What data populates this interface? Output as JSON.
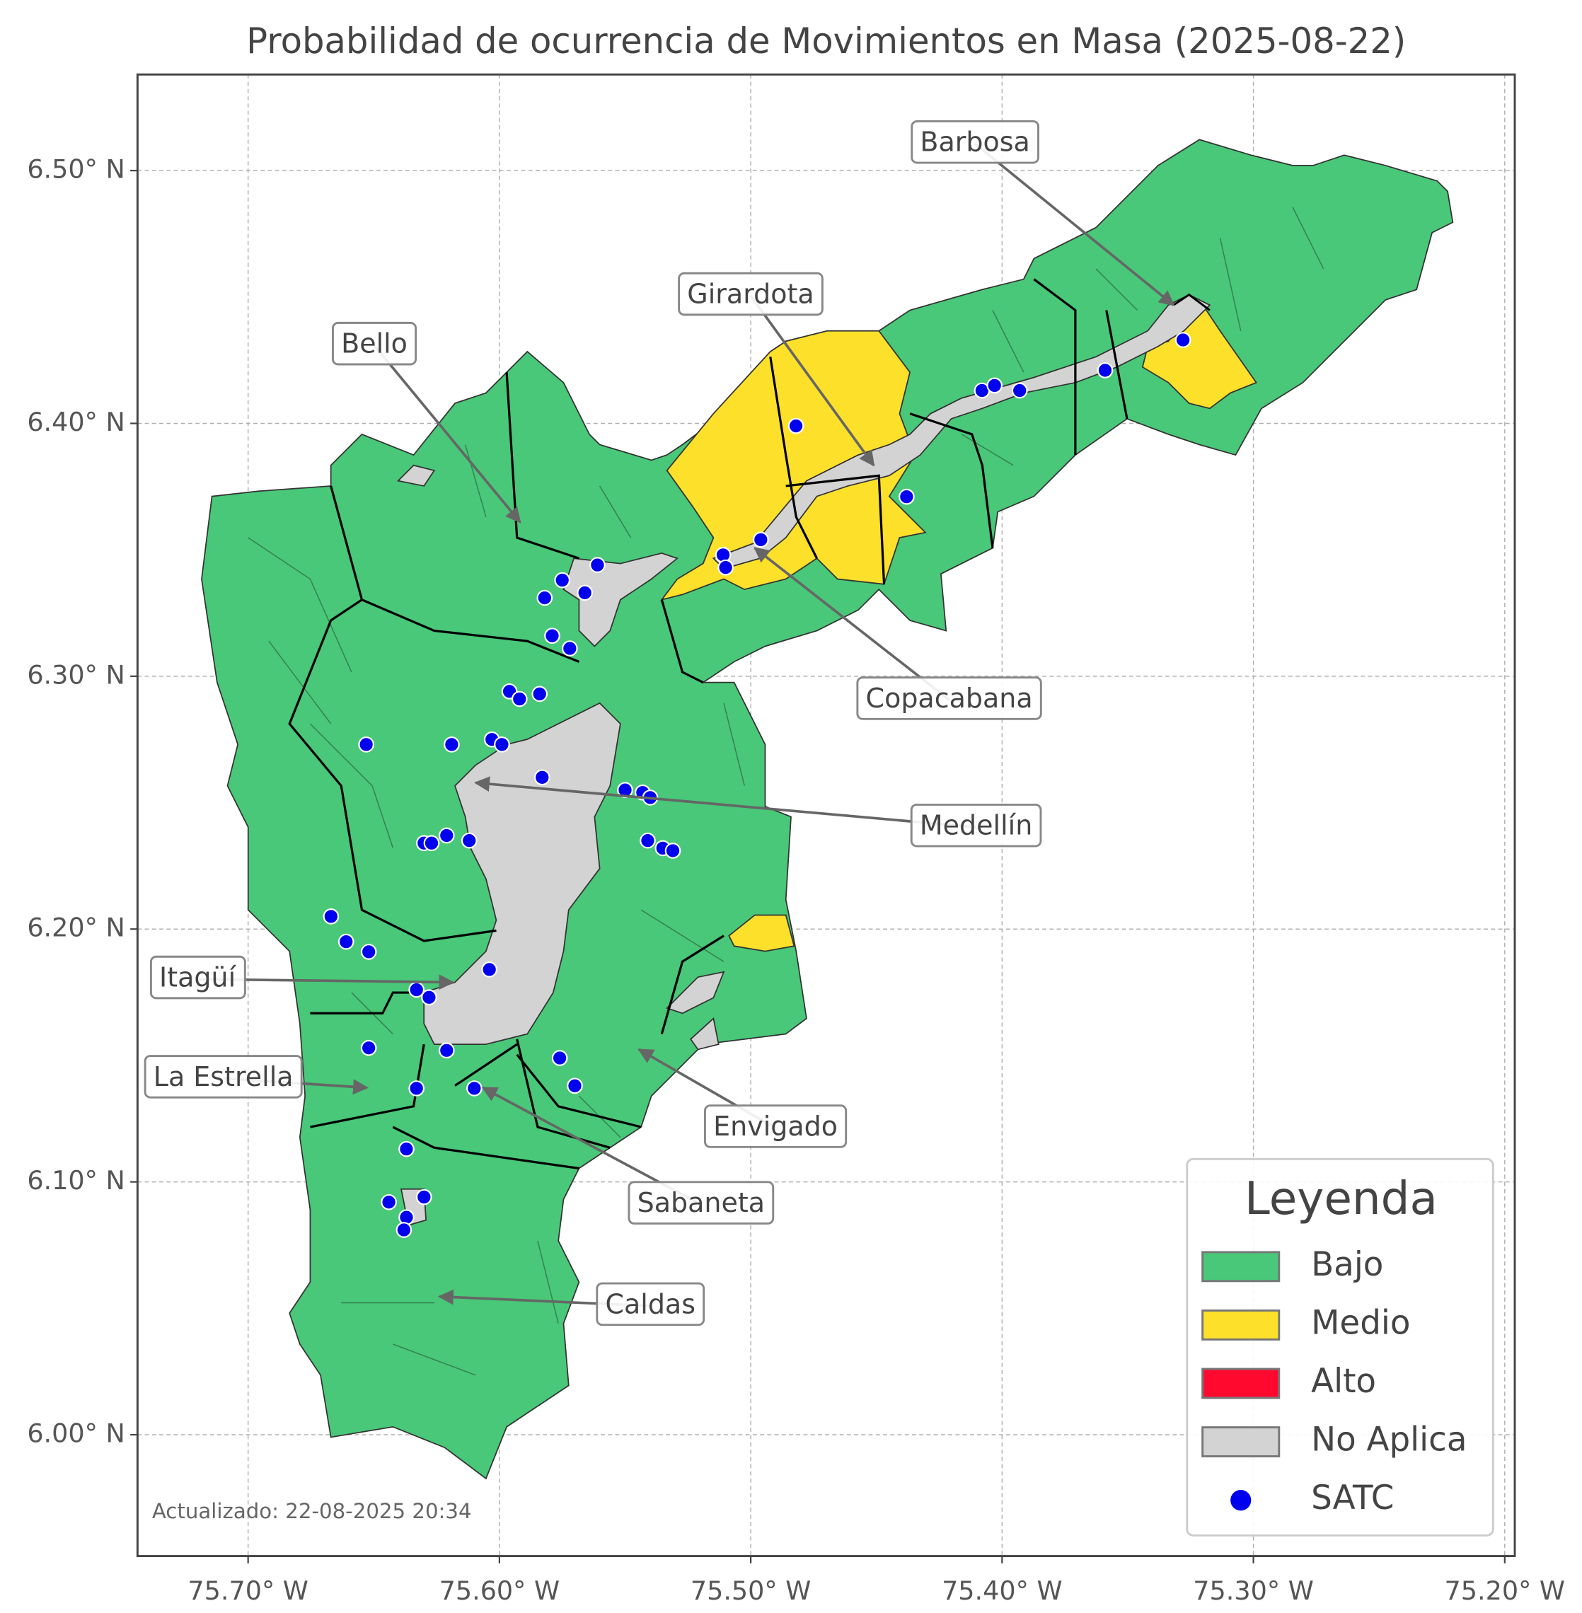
{
  "title": "Probabilidad de ocurrencia de Movimientos en Masa (2025-08-22)",
  "axes": {
    "xlim": [
      -75.744,
      -75.196
    ],
    "ylim": [
      5.952,
      6.538
    ],
    "xticks": [
      {
        "value": -75.7,
        "label": "75.70° W"
      },
      {
        "value": -75.6,
        "label": "75.60° W"
      },
      {
        "value": -75.5,
        "label": "75.50° W"
      },
      {
        "value": -75.4,
        "label": "75.40° W"
      },
      {
        "value": -75.3,
        "label": "75.30° W"
      },
      {
        "value": -75.2,
        "label": "75.20° W"
      }
    ],
    "yticks": [
      {
        "value": 6.0,
        "label": "6.00° N"
      },
      {
        "value": 6.1,
        "label": "6.10° N"
      },
      {
        "value": 6.2,
        "label": "6.20° N"
      },
      {
        "value": 6.3,
        "label": "6.30° N"
      },
      {
        "value": 6.4,
        "label": "6.40° N"
      },
      {
        "value": 6.5,
        "label": "6.50° N"
      }
    ],
    "grid": true
  },
  "legend": {
    "title": "Leyenda",
    "items": [
      {
        "name": "Bajo",
        "color": "#48c878"
      },
      {
        "name": "Medio",
        "color": "#fde02a"
      },
      {
        "name": "Alto",
        "color": "#ff0a2e"
      },
      {
        "name": "No Aplica",
        "color": "#d3d3d3"
      },
      {
        "name": "SATC",
        "color": "#0000ee"
      }
    ]
  },
  "annotations": [
    "Barbosa",
    "Girardota",
    "Bello",
    "Copacabana",
    "Medellín",
    "Itagüí",
    "La Estrella",
    "Envigado",
    "Sabaneta",
    "Caldas"
  ],
  "satc": {
    "lon": [
      -75.482,
      -75.408,
      -75.403,
      -75.393,
      -75.359,
      -75.328,
      -75.438,
      -75.496,
      -75.511,
      -75.51,
      -75.561,
      -75.575,
      -75.582,
      -75.566,
      -75.579,
      -75.572,
      -75.596,
      -75.592,
      -75.584,
      -75.653,
      -75.619,
      -75.603,
      -75.599,
      -75.583,
      -75.55,
      -75.543,
      -75.54,
      -75.541,
      -75.535,
      -75.531,
      -75.63,
      -75.627,
      -75.621,
      -75.612,
      -75.667,
      -75.661,
      -75.652,
      -75.604,
      -75.633,
      -75.628,
      -75.652,
      -75.621,
      -75.576,
      -75.57,
      -75.633,
      -75.61,
      -75.637,
      -75.644,
      -75.63,
      -75.637,
      -75.638
    ],
    "lat": [
      6.399,
      6.413,
      6.415,
      6.413,
      6.421,
      6.433,
      6.371,
      6.354,
      6.348,
      6.343,
      6.344,
      6.338,
      6.331,
      6.333,
      6.316,
      6.311,
      6.294,
      6.291,
      6.293,
      6.273,
      6.273,
      6.275,
      6.273,
      6.26,
      6.255,
      6.254,
      6.252,
      6.235,
      6.232,
      6.231,
      6.234,
      6.234,
      6.237,
      6.235,
      6.205,
      6.195,
      6.191,
      6.184,
      6.176,
      6.173,
      6.153,
      6.152,
      6.149,
      6.138,
      6.137,
      6.137,
      6.113,
      6.092,
      6.094,
      6.086,
      6.081
    ]
  },
  "footer": "Actualizado: 22-08-2025 20:34"
}
